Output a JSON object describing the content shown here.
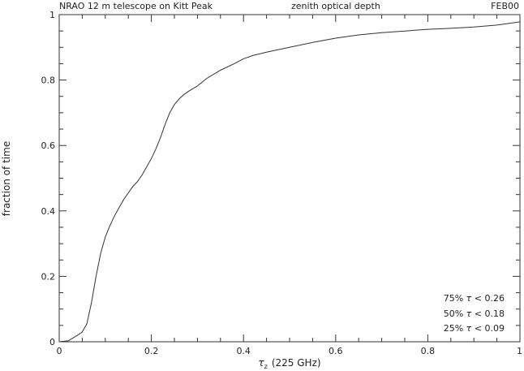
{
  "header": {
    "left": "NRAO 12 m telescope on Kitt Peak",
    "center": "zenith optical depth",
    "right": "FEB00"
  },
  "chart_data": {
    "type": "line",
    "xlabel_sym": "τ",
    "xlabel_sub": "z",
    "xlabel_rest": "(225 GHz)",
    "ylabel": "fraction of time",
    "xlim": [
      0,
      1
    ],
    "ylim": [
      0,
      1
    ],
    "xticks": [
      "0",
      "0.2",
      "0.4",
      "0.6",
      "0.8",
      "1"
    ],
    "yticks": [
      "0",
      "0.2",
      "0.4",
      "0.6",
      "0.8",
      "1"
    ],
    "grid": false,
    "annotations": [
      {
        "pct": "75%",
        "tau": "τ",
        "op": "<",
        "val": "0.26"
      },
      {
        "pct": "50%",
        "tau": "τ",
        "op": "<",
        "val": "0.18"
      },
      {
        "pct": "25%",
        "tau": "τ",
        "op": "<",
        "val": "0.09"
      }
    ],
    "series": [
      {
        "x": [
          0.0,
          0.02,
          0.03,
          0.04,
          0.05,
          0.06,
          0.07,
          0.08,
          0.09,
          0.1,
          0.11,
          0.12,
          0.13,
          0.14,
          0.15,
          0.16,
          0.17,
          0.18,
          0.19,
          0.2,
          0.21,
          0.22,
          0.23,
          0.24,
          0.25,
          0.26,
          0.27,
          0.28,
          0.3,
          0.32,
          0.35,
          0.38,
          0.4,
          0.42,
          0.45,
          0.5,
          0.55,
          0.6,
          0.65,
          0.7,
          0.75,
          0.8,
          0.85,
          0.9,
          0.95,
          1.0
        ],
        "y": [
          0.0,
          0.003,
          0.012,
          0.02,
          0.03,
          0.055,
          0.12,
          0.2,
          0.27,
          0.32,
          0.355,
          0.385,
          0.41,
          0.435,
          0.455,
          0.475,
          0.49,
          0.51,
          0.535,
          0.56,
          0.59,
          0.625,
          0.665,
          0.7,
          0.725,
          0.742,
          0.755,
          0.765,
          0.782,
          0.805,
          0.83,
          0.85,
          0.865,
          0.875,
          0.885,
          0.9,
          0.915,
          0.928,
          0.938,
          0.945,
          0.95,
          0.955,
          0.958,
          0.962,
          0.968,
          0.978
        ]
      }
    ]
  }
}
